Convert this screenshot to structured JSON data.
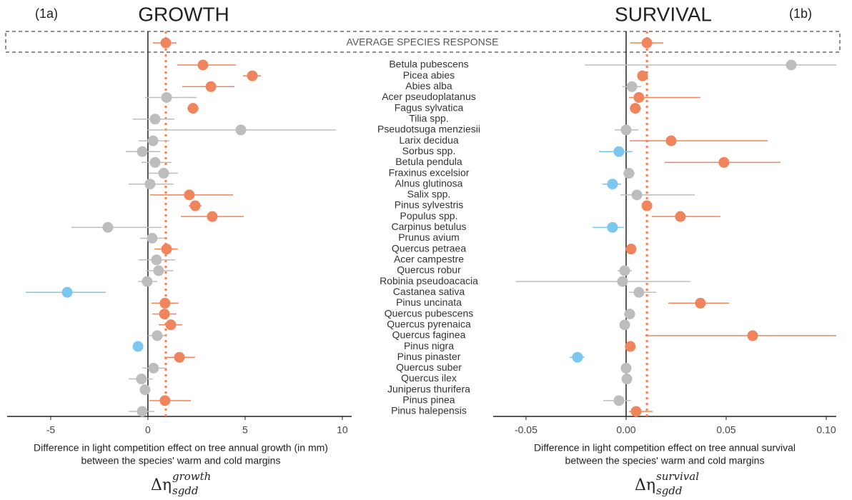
{
  "chart_data": [
    {
      "type": "forest",
      "panel": "(1a)",
      "title": "GROWTH",
      "average_label": "AVERAGE SPECIES RESPONSE",
      "categories": [
        "Betula pubescens",
        "Picea abies",
        "Abies alba",
        "Acer pseudoplatanus",
        "Fagus sylvatica",
        "Tilia spp.",
        "Pseudotsuga menziesii",
        "Larix decidua",
        "Sorbus spp.",
        "Betula pendula",
        "Fraxinus excelsior",
        "Alnus glutinosa",
        "Salix spp.",
        "Pinus sylvestris",
        "Populus spp.",
        "Carpinus betulus",
        "Prunus avium",
        "Quercus petraea",
        "Acer campestre",
        "Quercus robur",
        "Robinia pseudoacacia",
        "Castanea sativa",
        "Pinus uncinata",
        "Quercus pubescens",
        "Quercus pyrenaica",
        "Quercus faginea",
        "Pinus nigra",
        "Pinus pinaster",
        "Quercus suber",
        "Quercus ilex",
        "Juniperus thurifera",
        "Pinus pinea",
        "Pinus halepensis"
      ],
      "xlabel": [
        "Difference in light competition effect on tree annual growth (in mm)",
        "between the species' warm and cold margins"
      ],
      "symbol": {
        "base": "Δη",
        "sub": "sgdd",
        "sup": "growth"
      },
      "xlim": [
        -7.24,
        10.48
      ],
      "xticks": [
        -5,
        0,
        5,
        10
      ],
      "average": {
        "value": 0.92,
        "lower": 0.26,
        "upper": 1.47,
        "color": "#f0845c"
      },
      "values": [
        2.83,
        5.37,
        3.24,
        0.96,
        2.32,
        0.37,
        4.78,
        0.26,
        -0.29,
        0.37,
        0.81,
        0.11,
        2.13,
        2.43,
        3.31,
        -2.06,
        0.22,
        0.96,
        0.44,
        0.55,
        -0.04,
        -4.15,
        0.88,
        0.85,
        1.18,
        0.48,
        -0.51,
        1.62,
        0.29,
        -0.33,
        -0.15,
        0.88,
        -0.29
      ],
      "lower": [
        1.5,
        4.89,
        1.76,
        -0.15,
        2.02,
        -0.77,
        -0.07,
        -0.48,
        -1.14,
        -0.33,
        0.04,
        -0.99,
        0.11,
        2.1,
        1.69,
        -3.93,
        -0.4,
        0.33,
        -0.48,
        -0.11,
        -0.51,
        -6.29,
        0.18,
        0.22,
        0.55,
        0,
        -0.74,
        0.85,
        -0.29,
        -0.99,
        -0.4,
        0.07,
        -0.99
      ],
      "upper": [
        4.52,
        5.81,
        4.45,
        2.5,
        2.61,
        1.36,
        9.67,
        1.1,
        0.63,
        1.21,
        1.54,
        1.32,
        4.38,
        2.76,
        4.93,
        0.7,
        0.88,
        1.54,
        1.4,
        1.32,
        0.48,
        -2.17,
        1.58,
        1.47,
        1.76,
        0.96,
        -0.29,
        2.43,
        0.96,
        0.26,
        0.11,
        2.21,
        0.33
      ],
      "colors": [
        "#f0845c",
        "#f0845c",
        "#f0845c",
        "#bdbdbd",
        "#f0845c",
        "#bdbdbd",
        "#bdbdbd",
        "#bdbdbd",
        "#bdbdbd",
        "#bdbdbd",
        "#bdbdbd",
        "#bdbdbd",
        "#f0845c",
        "#f0845c",
        "#f0845c",
        "#bdbdbd",
        "#bdbdbd",
        "#f0845c",
        "#bdbdbd",
        "#bdbdbd",
        "#bdbdbd",
        "#7cc7f0",
        "#f0845c",
        "#f0845c",
        "#f0845c",
        "#bdbdbd",
        "#7cc7f0",
        "#f0845c",
        "#bdbdbd",
        "#bdbdbd",
        "#bdbdbd",
        "#f0845c",
        "#bdbdbd"
      ]
    },
    {
      "type": "forest",
      "panel": "(1b)",
      "title": "SURVIVAL",
      "xlabel": [
        "Difference in light competition effect on tree annual survival",
        "between the species' warm and cold margins"
      ],
      "symbol": {
        "base": "Δη",
        "sub": "sgdd",
        "sup": "survival"
      },
      "xlim": [
        -0.0664,
        0.105
      ],
      "xticks": [
        -0.05,
        {
          "value": 0,
          "label": "0.00"
        },
        0.05,
        {
          "value": 0.1,
          "label": "0.10"
        }
      ],
      "average": {
        "value": 0.0104,
        "lower": 0.0021,
        "upper": 0.0186,
        "color": "#f0845c"
      },
      "values": [
        0.0825,
        0.0082,
        0.0029,
        0.0064,
        0.0046,
        null,
        0,
        0.0225,
        -0.0036,
        0.0489,
        0.0014,
        -0.0068,
        0.0054,
        0.0104,
        0.0271,
        -0.0068,
        null,
        0.0025,
        null,
        -0.0007,
        -0.0018,
        0.0064,
        0.0371,
        0.0018,
        -0.0007,
        0.0632,
        0.0021,
        -0.0243,
        0,
        0.0004,
        null,
        -0.0036,
        0.005
      ],
      "lower": [
        -0.0207,
        0.0061,
        -0.0018,
        0.0014,
        0.0018,
        null,
        -0.0057,
        0.0018,
        -0.0136,
        0.0193,
        -0.0014,
        -0.0118,
        -0.0029,
        0.0082,
        0.0129,
        -0.0168,
        null,
        0.0011,
        null,
        -0.0043,
        -0.055,
        0.0014,
        0.0211,
        -0.0011,
        -0.0029,
        0.0096,
        0.0007,
        -0.0282,
        -0.0021,
        -0.0014,
        null,
        -0.0114,
        0.0014
      ],
      "upper": [
        0.105,
        0.0107,
        0.0075,
        0.0371,
        0.0075,
        null,
        0.0061,
        0.0707,
        0.0032,
        0.0771,
        0.0043,
        -0.0025,
        0.0343,
        0.0125,
        0.0471,
        -0.0011,
        null,
        0.0039,
        null,
        0.0029,
        0.0321,
        0.015,
        0.0514,
        0.0046,
        0.0014,
        0.105,
        0.0036,
        -0.0207,
        0.0021,
        0.0021,
        null,
        0.0025,
        0.0132
      ],
      "colors": [
        "#bdbdbd",
        "#f0845c",
        "#bdbdbd",
        "#f0845c",
        "#f0845c",
        null,
        "#bdbdbd",
        "#f0845c",
        "#7cc7f0",
        "#f0845c",
        "#bdbdbd",
        "#7cc7f0",
        "#bdbdbd",
        "#f0845c",
        "#f0845c",
        "#7cc7f0",
        null,
        "#f0845c",
        null,
        "#bdbdbd",
        "#bdbdbd",
        "#bdbdbd",
        "#f0845c",
        "#bdbdbd",
        "#bdbdbd",
        "#f0845c",
        "#f0845c",
        "#7cc7f0",
        "#bdbdbd",
        "#bdbdbd",
        null,
        "#bdbdbd",
        "#f0845c"
      ]
    }
  ]
}
